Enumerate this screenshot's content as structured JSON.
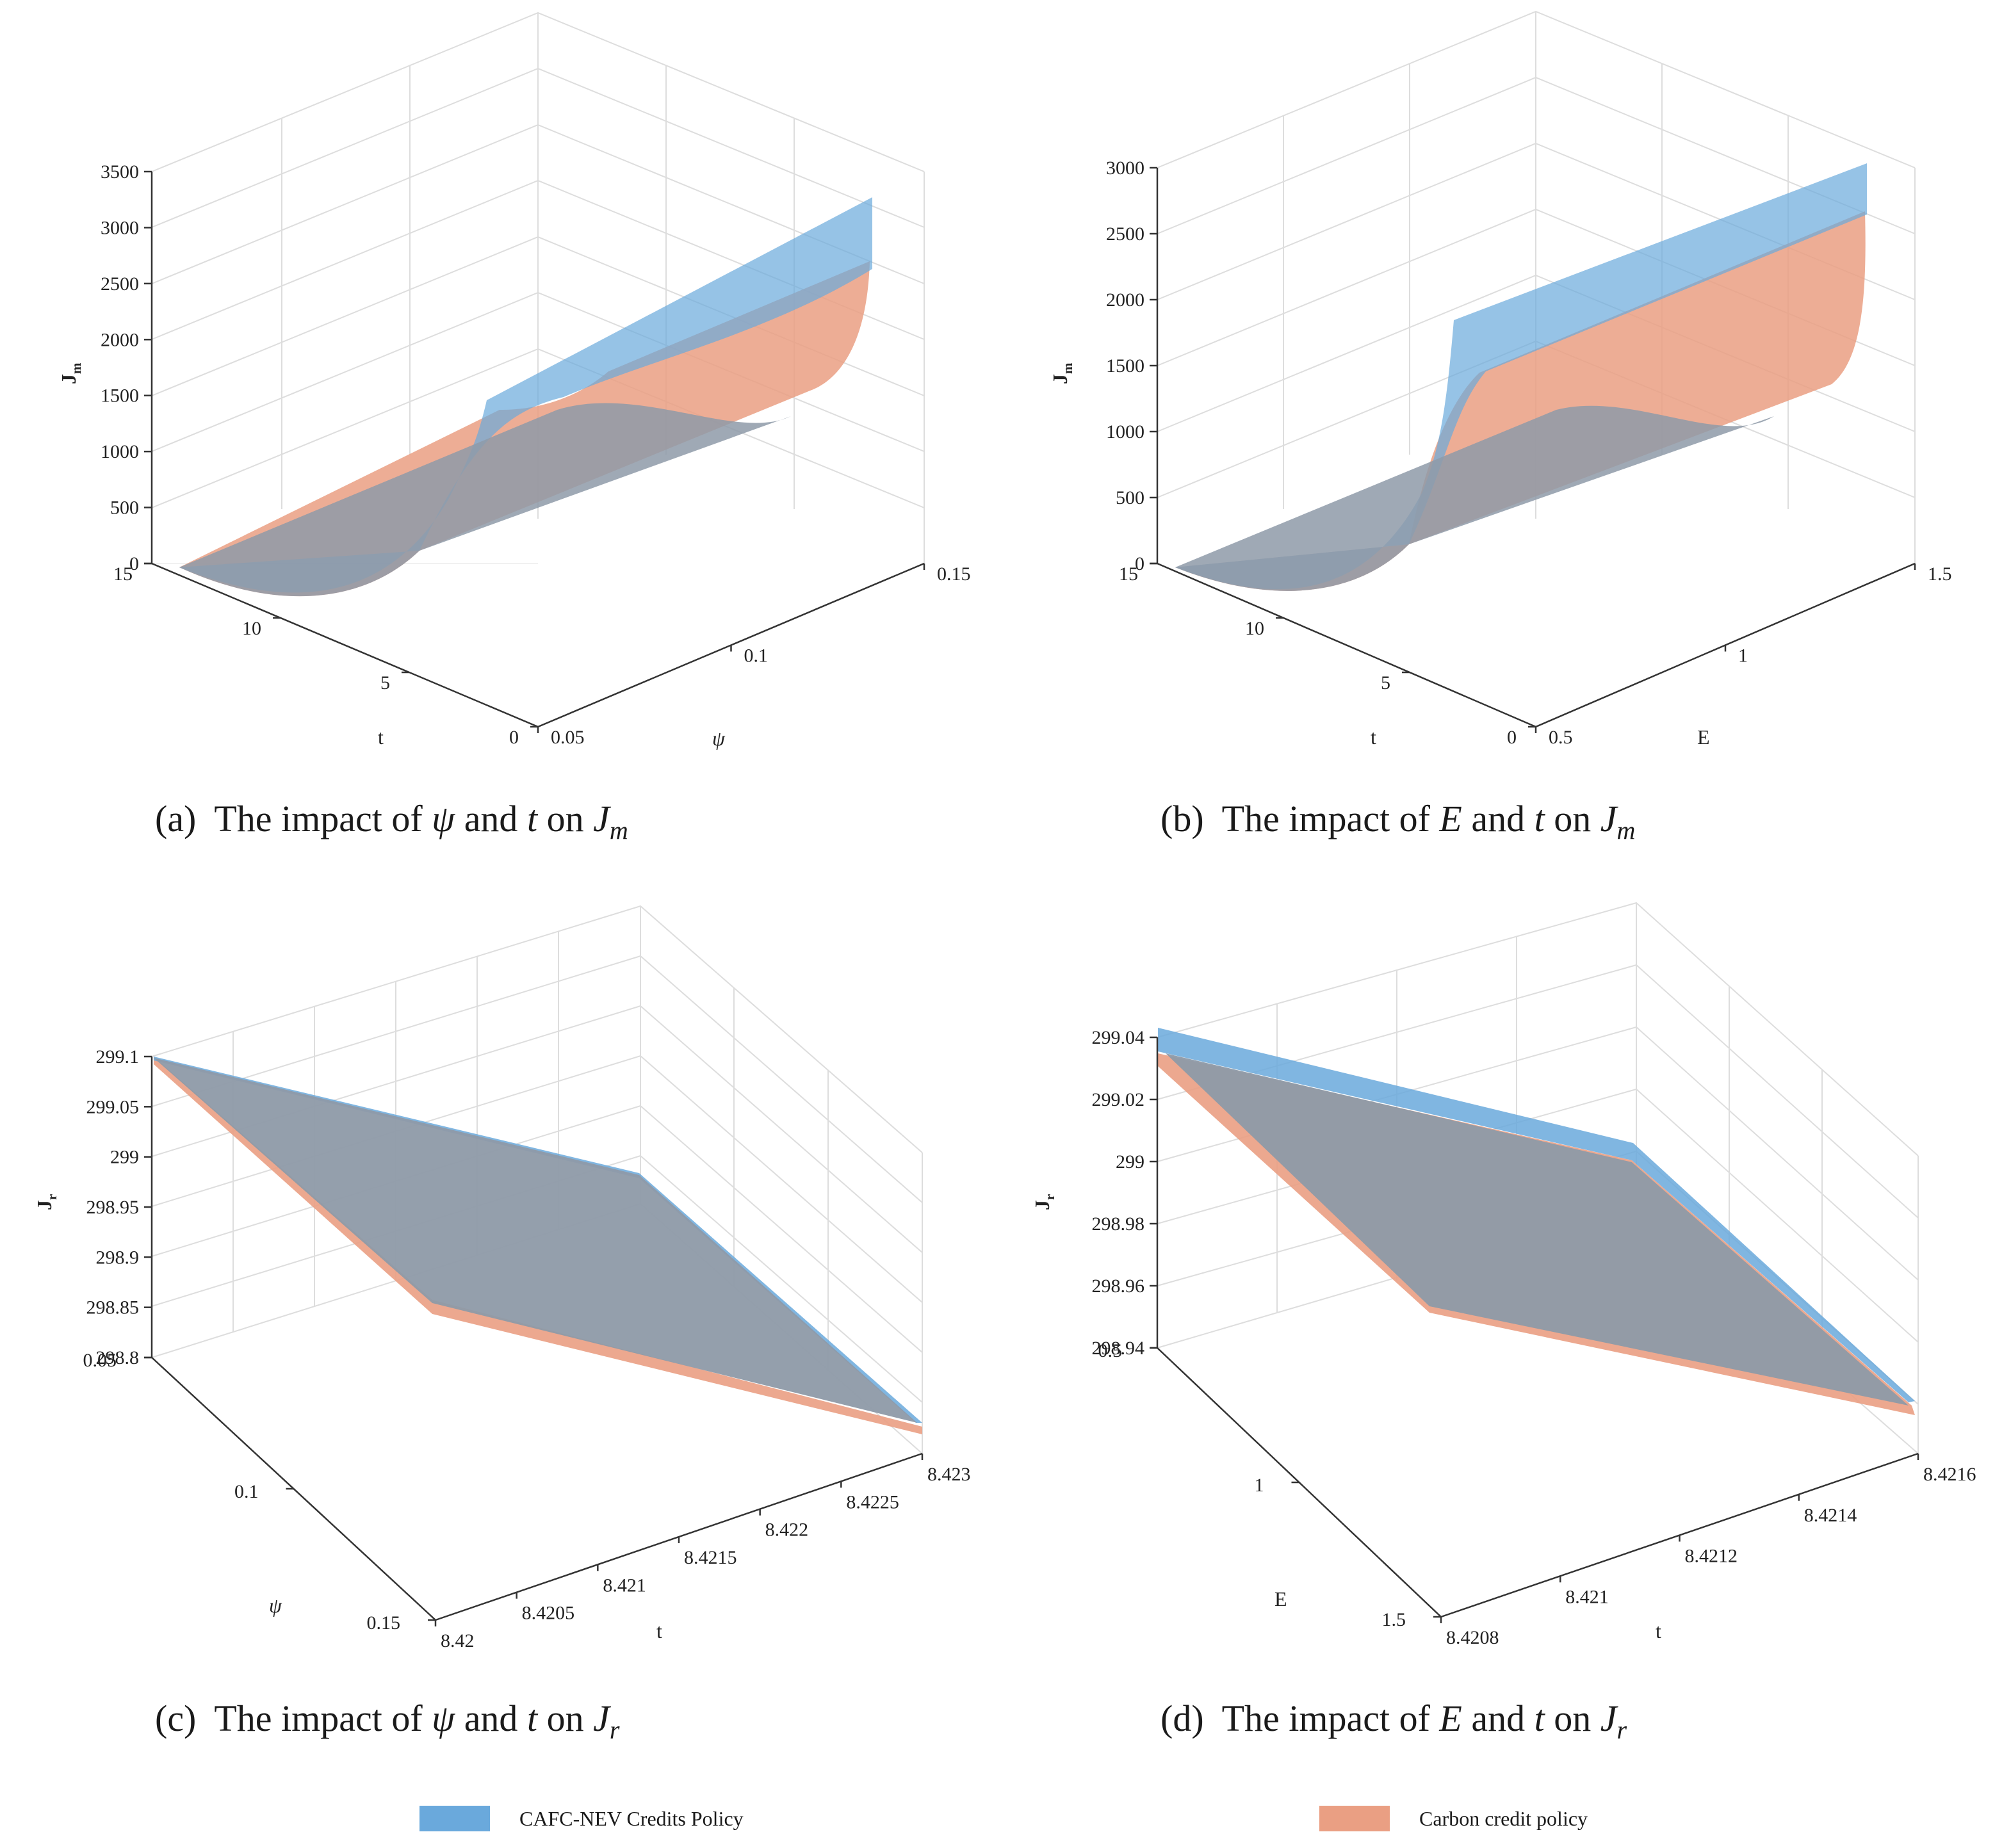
{
  "colors": {
    "series_a": "#6aa9dc",
    "series_b": "#ea9f83",
    "overlap": "#8e9aa8"
  },
  "legend": {
    "series_a": "CAFC-NEV Credits Policy",
    "series_b": "Carbon credit policy"
  },
  "chart_data": [
    {
      "type": "surface",
      "title": "",
      "caption": {
        "prefix": "(a)",
        "pre": "The impact of",
        "var": "ψ",
        "and": "and",
        "t": "t",
        "on": "on",
        "J": "J",
        "sub": "m"
      },
      "zlabel": "J",
      "zlabel_sub": "m",
      "xlabel": "t",
      "ylabel": "ψ",
      "zticks": [
        "3500",
        "3000",
        "2500",
        "2000",
        "1500",
        "1000",
        "500",
        "0"
      ],
      "xticks": [
        "15",
        "10",
        "5",
        "0"
      ],
      "yticks": [
        "0.05",
        "0.1",
        "0.15"
      ],
      "zlim": [
        0,
        3500
      ],
      "xlim": [
        0,
        15
      ],
      "ylim": [
        0.05,
        0.15
      ],
      "series": [
        {
          "name": "CAFC-NEV Credits Policy",
          "max_value": 3250
        },
        {
          "name": "Carbon credit policy",
          "max_value": 2680
        }
      ],
      "grid": true
    },
    {
      "type": "surface",
      "title": "",
      "caption": {
        "prefix": "(b)",
        "pre": "The impact of",
        "var": "E",
        "and": "and",
        "t": "t",
        "on": "on",
        "J": "J",
        "sub": "m"
      },
      "zlabel": "J",
      "zlabel_sub": "m",
      "xlabel": "t",
      "ylabel": "E",
      "zticks": [
        "3000",
        "2500",
        "2000",
        "1500",
        "1000",
        "500",
        "0"
      ],
      "xticks": [
        "15",
        "10",
        "5",
        "0"
      ],
      "yticks": [
        "0.5",
        "1",
        "1.5"
      ],
      "zlim": [
        0,
        3000
      ],
      "xlim": [
        0,
        15
      ],
      "ylim": [
        0.5,
        1.5
      ],
      "series": [
        {
          "name": "CAFC-NEV Credits Policy",
          "max_value": 3050
        },
        {
          "name": "Carbon credit policy",
          "max_value": 2650
        }
      ],
      "grid": true
    },
    {
      "type": "surface",
      "title": "",
      "caption": {
        "prefix": "(c)",
        "pre": "The impact of",
        "var": "ψ",
        "and": "and",
        "t": "t",
        "on": "on",
        "J": "J",
        "sub": "r"
      },
      "zlabel": "J",
      "zlabel_sub": "r",
      "xlabel": "t",
      "ylabel": "ψ",
      "zticks": [
        "299.1",
        "299.05",
        "299",
        "298.95",
        "298.9",
        "298.85",
        "298.8"
      ],
      "xticks": [
        "8.42",
        "8.4205",
        "8.421",
        "8.4215",
        "8.422",
        "8.4225",
        "8.423"
      ],
      "yticks": [
        "0.05",
        "0.1",
        "0.15"
      ],
      "zlim": [
        298.8,
        299.1
      ],
      "xlim": [
        8.42,
        8.423
      ],
      "ylim": [
        0.05,
        0.15
      ],
      "series": [
        {
          "name": "CAFC-NEV Credits Policy",
          "max_value": 299.09
        },
        {
          "name": "Carbon credit policy",
          "max_value": 299.09
        }
      ],
      "grid": true
    },
    {
      "type": "surface",
      "title": "",
      "caption": {
        "prefix": "(d)",
        "pre": "The impact of",
        "var": "E",
        "and": "and",
        "t": "t",
        "on": "on",
        "J": "J",
        "sub": "r"
      },
      "zlabel": "J",
      "zlabel_sub": "r",
      "xlabel": "t",
      "ylabel": "E",
      "zticks": [
        "299.04",
        "299.02",
        "299",
        "298.98",
        "298.96",
        "298.94"
      ],
      "xticks": [
        "8.4208",
        "8.421",
        "8.4212",
        "8.4214",
        "8.4216"
      ],
      "yticks": [
        "0.5",
        "1",
        "1.5"
      ],
      "zlim": [
        298.94,
        299.04
      ],
      "xlim": [
        8.4208,
        8.4216
      ],
      "ylim": [
        0.5,
        1.5
      ],
      "series": [
        {
          "name": "CAFC-NEV Credits Policy",
          "max_value": 299.03
        },
        {
          "name": "Carbon credit policy",
          "max_value": 299.022
        }
      ],
      "grid": true
    }
  ]
}
